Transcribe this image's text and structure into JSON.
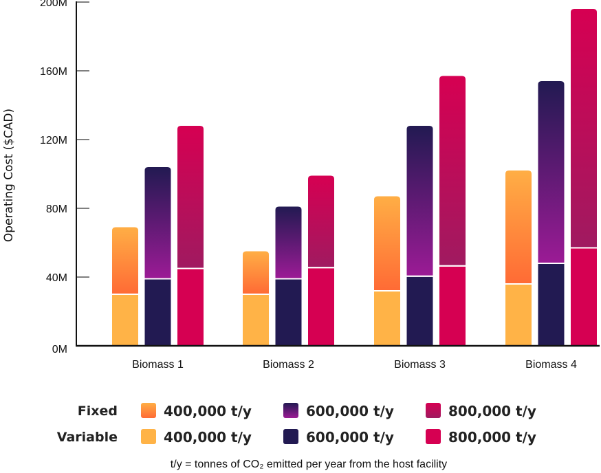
{
  "chart_data": {
    "type": "bar",
    "stacked": true,
    "title": "",
    "xlabel": "",
    "ylabel": "Operating Cost ($CAD)",
    "ylim": [
      0,
      200
    ],
    "yunit": "M",
    "yticks": [
      0,
      40,
      80,
      120,
      160,
      200
    ],
    "ytick_labels": [
      "0M",
      "40M",
      "80M",
      "120M",
      "160M",
      "200M"
    ],
    "grid": false,
    "categories": [
      "Biomass 1",
      "Biomass 2",
      "Biomass 3",
      "Biomass 4"
    ],
    "groups": [
      "400,000 t/y",
      "600,000 t/y",
      "800,000 t/y"
    ],
    "series": [
      {
        "name": "Variable 400,000 t/y",
        "component": "Variable",
        "group": "400,000 t/y",
        "values": [
          30,
          30,
          32,
          36
        ]
      },
      {
        "name": "Fixed 400,000 t/y",
        "component": "Fixed",
        "group": "400,000 t/y",
        "values": [
          39,
          25,
          55,
          66
        ]
      },
      {
        "name": "Variable 600,000 t/y",
        "component": "Variable",
        "group": "600,000 t/y",
        "values": [
          39,
          39,
          40.5,
          48
        ]
      },
      {
        "name": "Fixed 600,000 t/y",
        "component": "Fixed",
        "group": "600,000 t/y",
        "values": [
          65,
          42,
          87.5,
          106
        ]
      },
      {
        "name": "Variable 800,000 t/y",
        "component": "Variable",
        "group": "800,000 t/y",
        "values": [
          45,
          45.5,
          46.5,
          57
        ]
      },
      {
        "name": "Fixed 800,000 t/y",
        "component": "Fixed",
        "group": "800,000 t/y",
        "values": [
          83,
          53.5,
          110.5,
          139
        ]
      }
    ],
    "totals": {
      "400,000 t/y": [
        69,
        55,
        87,
        102
      ],
      "600,000 t/y": [
        104,
        81,
        128,
        154
      ],
      "800,000 t/y": [
        128,
        99,
        157,
        196
      ]
    },
    "legend": {
      "placement": "bottom",
      "rows": [
        {
          "label": "Fixed",
          "items": [
            "400,000 t/y",
            "600,000 t/y",
            "800,000 t/y"
          ]
        },
        {
          "label": "Variable",
          "items": [
            "400,000 t/y",
            "600,000 t/y",
            "800,000 t/y"
          ]
        }
      ]
    },
    "footnote": "t/y = tonnes of CO₂ emitted per year from the host facility"
  },
  "colors": {
    "variable": {
      "400,000 t/y": "#FFB347",
      "600,000 t/y": "#221A52",
      "800,000 t/y": "#D60052"
    },
    "fixed_gradient": {
      "400,000 t/y": [
        "#FFAE45",
        "#FF6B35"
      ],
      "600,000 t/y": [
        "#221A52",
        "#9B1B95"
      ],
      "800,000 t/y": [
        "#D60052",
        "#A01A60"
      ]
    },
    "axis": "#111111"
  }
}
